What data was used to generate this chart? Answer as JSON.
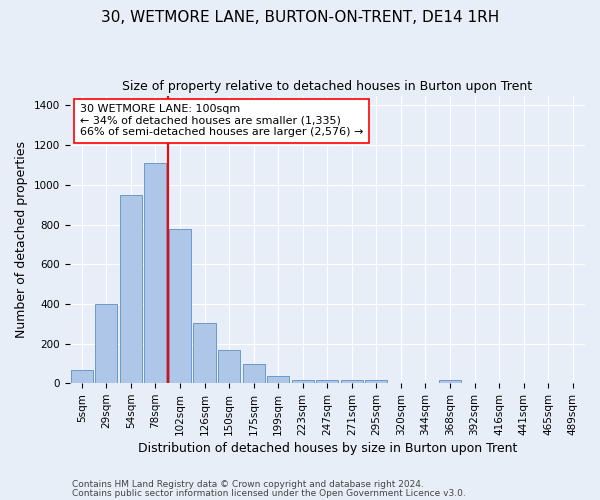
{
  "title": "30, WETMORE LANE, BURTON-ON-TRENT, DE14 1RH",
  "subtitle": "Size of property relative to detached houses in Burton upon Trent",
  "xlabel": "Distribution of detached houses by size in Burton upon Trent",
  "ylabel": "Number of detached properties",
  "footer1": "Contains HM Land Registry data © Crown copyright and database right 2024.",
  "footer2": "Contains public sector information licensed under the Open Government Licence v3.0.",
  "categories": [
    "5sqm",
    "29sqm",
    "54sqm",
    "78sqm",
    "102sqm",
    "126sqm",
    "150sqm",
    "175sqm",
    "199sqm",
    "223sqm",
    "247sqm",
    "271sqm",
    "295sqm",
    "320sqm",
    "344sqm",
    "368sqm",
    "392sqm",
    "416sqm",
    "441sqm",
    "465sqm",
    "489sqm"
  ],
  "values": [
    65,
    400,
    950,
    1110,
    775,
    305,
    165,
    98,
    37,
    18,
    18,
    14,
    14,
    0,
    0,
    14,
    0,
    0,
    0,
    0,
    0
  ],
  "bar_color": "#aec6e8",
  "bar_edge_color": "#5a8fc0",
  "vline_color": "red",
  "vline_x_index": 4,
  "annotation_text": "30 WETMORE LANE: 100sqm\n← 34% of detached houses are smaller (1,335)\n66% of semi-detached houses are larger (2,576) →",
  "annotation_box_color": "white",
  "annotation_box_edge": "red",
  "ylim": [
    0,
    1450
  ],
  "yticks": [
    0,
    200,
    400,
    600,
    800,
    1000,
    1200,
    1400
  ],
  "bg_color": "#e8eef8",
  "grid_color": "white",
  "title_fontsize": 11,
  "subtitle_fontsize": 9,
  "annot_fontsize": 8,
  "xlabel_fontsize": 9,
  "ylabel_fontsize": 9,
  "tick_fontsize": 7.5,
  "footer_fontsize": 6.5
}
